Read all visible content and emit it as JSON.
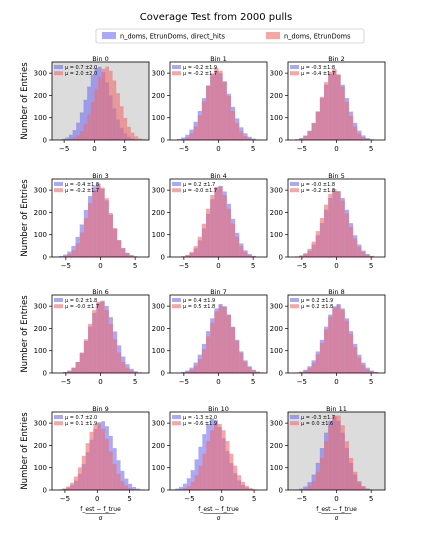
{
  "title": "Coverage Test from 2000 pulls",
  "legend": {
    "series_a": "n_doms, EtrunDoms, direct_hits",
    "series_b": "n_doms, EtrunDoms"
  },
  "colors": {
    "series_a": "#6f6ff2",
    "series_b": "#f06a6a",
    "flagged_bg": "#dcdcdc"
  },
  "ylabel": "Number of Entries",
  "xlabel": {
    "numerator": "f_est − f_true",
    "denominator": "σ"
  },
  "chart_data": [
    {
      "type": "bar",
      "title": "Bin 0",
      "stats": [
        "μ = 0.7 ±2.0",
        "μ = 2.0 ±2.0"
      ],
      "flagged": true,
      "xlim": [
        -7,
        9
      ],
      "xticks": [
        -5,
        0,
        5
      ],
      "ylim": [
        0,
        350
      ],
      "yticks": [
        0,
        100,
        200,
        300
      ],
      "series": [
        {
          "name": "n_doms, EtrunDoms, direct_hits",
          "mean": 0.7,
          "sigma": 2.0,
          "peak": 330
        },
        {
          "name": "n_doms, EtrunDoms",
          "mean": 2.0,
          "sigma": 2.0,
          "peak": 330
        }
      ]
    },
    {
      "type": "bar",
      "title": "Bin 1",
      "stats": [
        "μ = -0.2 ±1.9",
        "μ = -0.2 ±1.7"
      ],
      "flagged": false,
      "xlim": [
        -7,
        7
      ],
      "xticks": [
        -5,
        0,
        5
      ],
      "ylim": [
        0,
        350
      ],
      "yticks": [
        0,
        100,
        200,
        300
      ],
      "series": [
        {
          "name": "n_doms, EtrunDoms, direct_hits",
          "mean": -0.2,
          "sigma": 1.9,
          "peak": 310
        },
        {
          "name": "n_doms, EtrunDoms",
          "mean": -0.2,
          "sigma": 1.7,
          "peak": 325
        }
      ]
    },
    {
      "type": "bar",
      "title": "Bin 2",
      "stats": [
        "μ = -0.3 ±1.8",
        "μ = -0.4 ±1.7"
      ],
      "flagged": false,
      "xlim": [
        -7,
        7
      ],
      "xticks": [
        -5,
        0,
        5
      ],
      "ylim": [
        0,
        350
      ],
      "yticks": [
        0,
        100,
        200,
        300
      ],
      "series": [
        {
          "name": "n_doms, EtrunDoms, direct_hits",
          "mean": -0.3,
          "sigma": 1.8,
          "peak": 310
        },
        {
          "name": "n_doms, EtrunDoms",
          "mean": -0.4,
          "sigma": 1.7,
          "peak": 320
        }
      ]
    },
    {
      "type": "bar",
      "title": "Bin 3",
      "stats": [
        "μ = -0.4 ±1.8",
        "μ = -0.2 ±1.7"
      ],
      "flagged": false,
      "xlim": [
        -7,
        7
      ],
      "xticks": [
        -5,
        0,
        5
      ],
      "ylim": [
        0,
        350
      ],
      "yticks": [
        0,
        100,
        200,
        300
      ],
      "series": [
        {
          "name": "n_doms, EtrunDoms, direct_hits",
          "mean": -0.4,
          "sigma": 1.8,
          "peak": 330
        },
        {
          "name": "n_doms, EtrunDoms",
          "mean": -0.2,
          "sigma": 1.7,
          "peak": 325
        }
      ]
    },
    {
      "type": "bar",
      "title": "Bin 4",
      "stats": [
        "μ = 0.2 ±1.7",
        "μ = -0.0 ±1.7"
      ],
      "flagged": false,
      "xlim": [
        -7,
        7
      ],
      "xticks": [
        -5,
        0,
        5
      ],
      "ylim": [
        0,
        350
      ],
      "yticks": [
        0,
        100,
        200,
        300
      ],
      "series": [
        {
          "name": "n_doms, EtrunDoms, direct_hits",
          "mean": 0.2,
          "sigma": 1.7,
          "peak": 320
        },
        {
          "name": "n_doms, EtrunDoms",
          "mean": 0.0,
          "sigma": 1.7,
          "peak": 320
        }
      ]
    },
    {
      "type": "bar",
      "title": "Bin 5",
      "stats": [
        "μ = -0.0 ±1.8",
        "μ = -0.2 ±1.8"
      ],
      "flagged": false,
      "xlim": [
        -7,
        7
      ],
      "xticks": [
        -5,
        0,
        5
      ],
      "ylim": [
        0,
        350
      ],
      "yticks": [
        0,
        100,
        200,
        300
      ],
      "series": [
        {
          "name": "n_doms, EtrunDoms, direct_hits",
          "mean": 0.0,
          "sigma": 1.8,
          "peak": 300
        },
        {
          "name": "n_doms, EtrunDoms",
          "mean": -0.2,
          "sigma": 1.8,
          "peak": 305
        }
      ]
    },
    {
      "type": "bar",
      "title": "Bin 6",
      "stats": [
        "μ = 0.2 ±1.8",
        "μ = -0.0 ±1.7"
      ],
      "flagged": false,
      "xlim": [
        -7,
        7
      ],
      "xticks": [
        -5,
        0,
        5
      ],
      "ylim": [
        0,
        350
      ],
      "yticks": [
        0,
        100,
        200,
        300
      ],
      "series": [
        {
          "name": "n_doms, EtrunDoms, direct_hits",
          "mean": 0.2,
          "sigma": 1.8,
          "peak": 325
        },
        {
          "name": "n_doms, EtrunDoms",
          "mean": 0.0,
          "sigma": 1.7,
          "peak": 325
        }
      ]
    },
    {
      "type": "bar",
      "title": "Bin 7",
      "stats": [
        "μ = 0.4 ±1.9",
        "μ = 0.5 ±1.8"
      ],
      "flagged": false,
      "xlim": [
        -7,
        7
      ],
      "xticks": [
        -5,
        0,
        5
      ],
      "ylim": [
        0,
        350
      ],
      "yticks": [
        0,
        100,
        200,
        300
      ],
      "series": [
        {
          "name": "n_doms, EtrunDoms, direct_hits",
          "mean": 0.4,
          "sigma": 1.9,
          "peak": 310
        },
        {
          "name": "n_doms, EtrunDoms",
          "mean": 0.5,
          "sigma": 1.8,
          "peak": 305
        }
      ]
    },
    {
      "type": "bar",
      "title": "Bin 8",
      "stats": [
        "μ = 0.2 ±1.9",
        "μ = 0.2 ±1.8"
      ],
      "flagged": false,
      "xlim": [
        -7,
        7
      ],
      "xticks": [
        -5,
        0,
        5
      ],
      "ylim": [
        0,
        350
      ],
      "yticks": [
        0,
        100,
        200,
        300
      ],
      "series": [
        {
          "name": "n_doms, EtrunDoms, direct_hits",
          "mean": 0.2,
          "sigma": 1.9,
          "peak": 310
        },
        {
          "name": "n_doms, EtrunDoms",
          "mean": 0.2,
          "sigma": 1.8,
          "peak": 305
        }
      ]
    },
    {
      "type": "bar",
      "title": "Bin 9",
      "stats": [
        "μ = 0.7 ±2.0",
        "μ = 0.1 ±1.9"
      ],
      "flagged": false,
      "xlim": [
        -7,
        8
      ],
      "xticks": [
        -5,
        0,
        5
      ],
      "ylim": [
        0,
        350
      ],
      "yticks": [
        0,
        100,
        200,
        300
      ],
      "series": [
        {
          "name": "n_doms, EtrunDoms, direct_hits",
          "mean": 0.7,
          "sigma": 2.0,
          "peak": 310
        },
        {
          "name": "n_doms, EtrunDoms",
          "mean": 0.1,
          "sigma": 1.9,
          "peak": 300
        }
      ]
    },
    {
      "type": "bar",
      "title": "Bin 10",
      "stats": [
        "μ = -1.3 ±2.0",
        "μ = -0.6 ±1.9"
      ],
      "flagged": false,
      "xlim": [
        -8,
        7
      ],
      "xticks": [
        -5,
        0,
        5
      ],
      "ylim": [
        0,
        350
      ],
      "yticks": [
        0,
        100,
        200,
        300
      ],
      "series": [
        {
          "name": "n_doms, EtrunDoms, direct_hits",
          "mean": -1.3,
          "sigma": 2.0,
          "peak": 320
        },
        {
          "name": "n_doms, EtrunDoms",
          "mean": -0.6,
          "sigma": 1.9,
          "peak": 300
        }
      ]
    },
    {
      "type": "bar",
      "title": "Bin 11",
      "stats": [
        "μ = -0.3 ±1.7",
        "μ = 0.0 ±1.6"
      ],
      "flagged": true,
      "xlim": [
        -7,
        7
      ],
      "xticks": [
        -5,
        0,
        5
      ],
      "ylim": [
        0,
        350
      ],
      "yticks": [
        0,
        100,
        200,
        300
      ],
      "series": [
        {
          "name": "n_doms, EtrunDoms, direct_hits",
          "mean": -0.3,
          "sigma": 1.7,
          "peak": 330
        },
        {
          "name": "n_doms, EtrunDoms",
          "mean": 0.0,
          "sigma": 1.6,
          "peak": 340
        }
      ]
    }
  ]
}
